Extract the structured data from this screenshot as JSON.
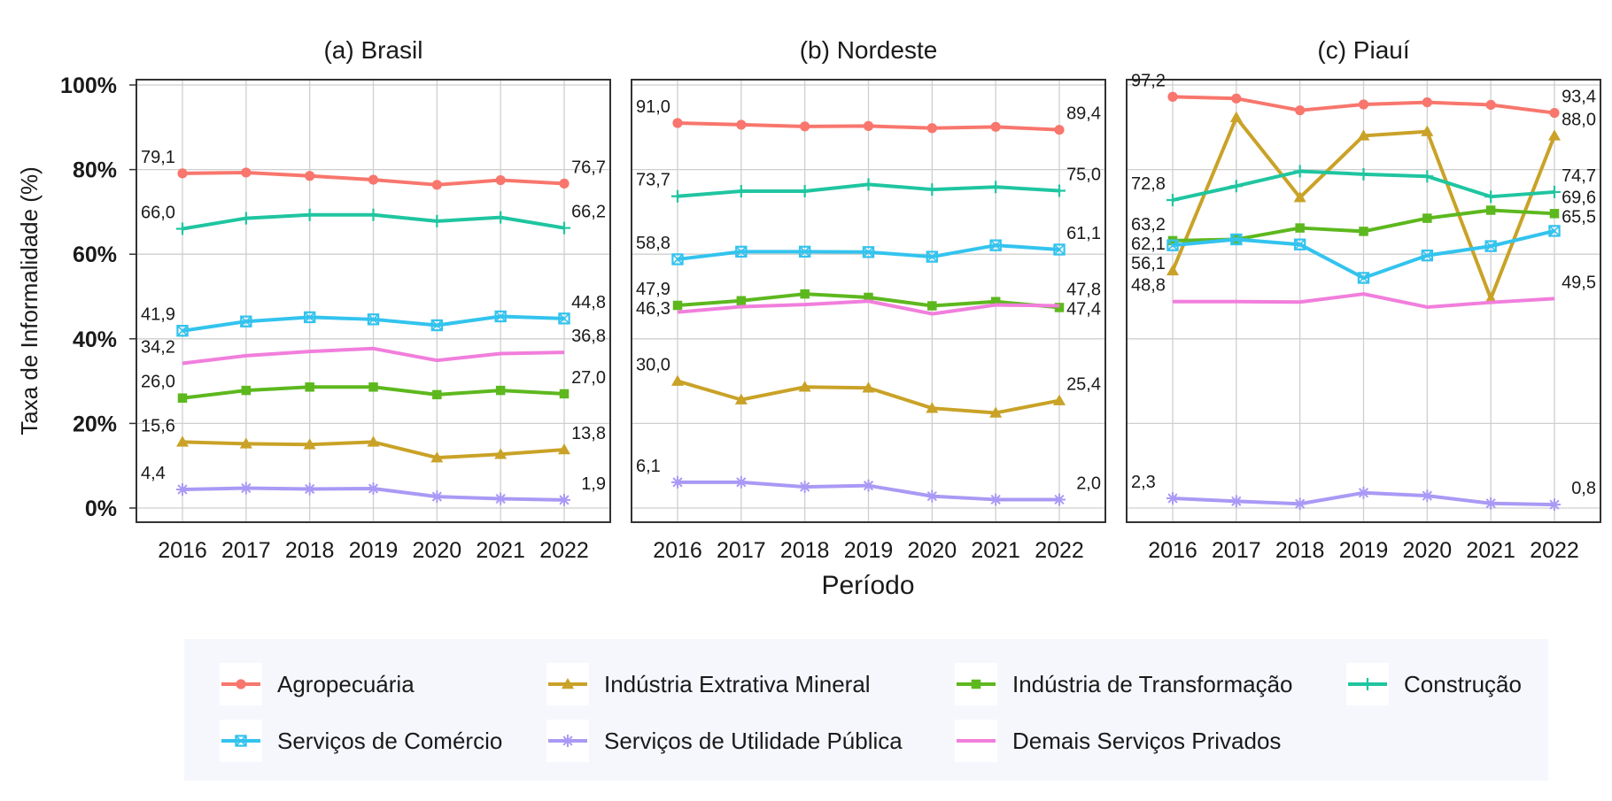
{
  "chart_data": {
    "type": "line",
    "ylabel": "Taxa de Informalidade (%)",
    "xlabel": "Período",
    "ylim": [
      0,
      100
    ],
    "yticks": [
      0,
      20,
      40,
      60,
      80,
      100
    ],
    "ytick_labels": [
      "0%",
      "20%",
      "40%",
      "60%",
      "80%",
      "100%"
    ],
    "x": [
      "2016",
      "2017",
      "2018",
      "2019",
      "2020",
      "2021",
      "2022"
    ],
    "grid": true,
    "legend_position": "bottom",
    "series_styles": [
      {
        "name": "Agropecuária",
        "color": "#F8766D",
        "marker": "circle"
      },
      {
        "name": "Indústria Extrativa Mineral",
        "color": "#C9A227",
        "marker": "triangle"
      },
      {
        "name": "Indústria de Transformação",
        "color": "#5DB81E",
        "marker": "square"
      },
      {
        "name": "Construção",
        "color": "#1FC5A0",
        "marker": "plus"
      },
      {
        "name": "Serviços de Comércio",
        "color": "#33C3EE",
        "marker": "boxx"
      },
      {
        "name": "Serviços de Utilidade Pública",
        "color": "#AA99F5",
        "marker": "asterisk"
      },
      {
        "name": "Demais Serviços Privados",
        "color": "#F17EDC",
        "marker": "none"
      }
    ],
    "panels": [
      {
        "title": "(a) Brasil",
        "series": [
          {
            "name": "Agropecuária",
            "values": [
              79.1,
              79.3,
              78.5,
              77.6,
              76.4,
              77.5,
              76.7
            ]
          },
          {
            "name": "Indústria Extrativa Mineral",
            "values": [
              15.6,
              15.2,
              15.0,
              15.6,
              11.9,
              12.7,
              13.8
            ]
          },
          {
            "name": "Indústria de Transformação",
            "values": [
              26.0,
              27.8,
              28.6,
              28.6,
              26.8,
              27.8,
              27.0
            ]
          },
          {
            "name": "Construção",
            "values": [
              66.0,
              68.5,
              69.3,
              69.3,
              67.8,
              68.7,
              66.2
            ]
          },
          {
            "name": "Serviços de Comércio",
            "values": [
              41.9,
              44.1,
              45.1,
              44.6,
              43.2,
              45.3,
              44.8
            ]
          },
          {
            "name": "Serviços de Utilidade Pública",
            "values": [
              4.4,
              4.7,
              4.5,
              4.6,
              2.7,
              2.2,
              1.9
            ]
          },
          {
            "name": "Demais Serviços Privados",
            "values": [
              34.2,
              36.0,
              37.0,
              37.7,
              34.9,
              36.5,
              36.8
            ]
          }
        ],
        "annotations": [
          {
            "text": "79,1",
            "series": "Agropecuária",
            "at": "start"
          },
          {
            "text": "76,7",
            "series": "Agropecuária",
            "at": "end"
          },
          {
            "text": "66,0",
            "series": "Construção",
            "at": "start"
          },
          {
            "text": "66,2",
            "series": "Construção",
            "at": "end"
          },
          {
            "text": "41,9",
            "series": "Serviços de Comércio",
            "at": "start"
          },
          {
            "text": "44,8",
            "series": "Serviços de Comércio",
            "at": "end"
          },
          {
            "text": "34,2",
            "series": "Demais Serviços Privados",
            "at": "start"
          },
          {
            "text": "36,8",
            "series": "Demais Serviços Privados",
            "at": "end"
          },
          {
            "text": "26,0",
            "series": "Indústria de Transformação",
            "at": "start"
          },
          {
            "text": "27,0",
            "series": "Indústria de Transformação",
            "at": "end"
          },
          {
            "text": "15,6",
            "series": "Indústria Extrativa Mineral",
            "at": "start"
          },
          {
            "text": "13,8",
            "series": "Indústria Extrativa Mineral",
            "at": "end"
          },
          {
            "text": "4,4",
            "series": "Serviços de Utilidade Pública",
            "at": "start"
          },
          {
            "text": "1,9",
            "series": "Serviços de Utilidade Pública",
            "at": "end"
          }
        ]
      },
      {
        "title": "(b) Nordeste",
        "series": [
          {
            "name": "Agropecuária",
            "values": [
              91.0,
              90.6,
              90.2,
              90.3,
              89.8,
              90.1,
              89.4
            ]
          },
          {
            "name": "Indústria Extrativa Mineral",
            "values": [
              30.0,
              25.6,
              28.6,
              28.4,
              23.6,
              22.5,
              25.4
            ]
          },
          {
            "name": "Indústria de Transformação",
            "values": [
              47.9,
              49.0,
              50.6,
              49.8,
              47.8,
              48.8,
              47.4
            ]
          },
          {
            "name": "Construção",
            "values": [
              73.7,
              74.9,
              74.9,
              76.5,
              75.3,
              75.9,
              75.0
            ]
          },
          {
            "name": "Serviços de Comércio",
            "values": [
              58.8,
              60.6,
              60.6,
              60.5,
              59.4,
              62.1,
              61.1
            ]
          },
          {
            "name": "Serviços de Utilidade Pública",
            "values": [
              6.1,
              6.1,
              5.0,
              5.3,
              2.8,
              2.0,
              2.0
            ]
          },
          {
            "name": "Demais Serviços Privados",
            "values": [
              46.3,
              47.6,
              48.1,
              48.9,
              45.9,
              48.0,
              47.8
            ]
          }
        ],
        "annotations": [
          {
            "text": "91,0",
            "series": "Agropecuária",
            "at": "start"
          },
          {
            "text": "89,4",
            "series": "Agropecuária",
            "at": "end"
          },
          {
            "text": "73,7",
            "series": "Construção",
            "at": "start"
          },
          {
            "text": "75,0",
            "series": "Construção",
            "at": "end"
          },
          {
            "text": "58,8",
            "series": "Serviços de Comércio",
            "at": "start"
          },
          {
            "text": "61,1",
            "series": "Serviços de Comércio",
            "at": "end"
          },
          {
            "text": "47,9",
            "series": "Indústria de Transformação",
            "at": "start"
          },
          {
            "text": "47,8",
            "series": "Demais Serviços Privados",
            "at": "end"
          },
          {
            "text": "46,3",
            "series": "Demais Serviços Privados",
            "at": "start"
          },
          {
            "text": "47,4",
            "series": "Indústria de Transformação",
            "at": "end"
          },
          {
            "text": "30,0",
            "series": "Indústria Extrativa Mineral",
            "at": "start"
          },
          {
            "text": "25,4",
            "series": "Indústria Extrativa Mineral",
            "at": "end"
          },
          {
            "text": "6,1",
            "series": "Serviços de Utilidade Pública",
            "at": "start"
          },
          {
            "text": "2,0",
            "series": "Serviços de Utilidade Pública",
            "at": "end"
          }
        ]
      },
      {
        "title": "(c) Piauí",
        "series": [
          {
            "name": "Agropecuária",
            "values": [
              97.2,
              96.8,
              94.0,
              95.4,
              95.9,
              95.3,
              93.4
            ]
          },
          {
            "name": "Indústria Extrativa Mineral",
            "values": [
              56.1,
              92.3,
              73.4,
              88.0,
              89.0,
              49.5,
              88.0
            ]
          },
          {
            "name": "Indústria de Transformação",
            "values": [
              63.2,
              63.5,
              66.2,
              65.4,
              68.5,
              70.4,
              69.6
            ]
          },
          {
            "name": "Construção",
            "values": [
              72.8,
              76.1,
              79.6,
              78.9,
              78.4,
              73.6,
              74.7
            ]
          },
          {
            "name": "Serviços de Comércio",
            "values": [
              62.1,
              63.5,
              62.3,
              54.4,
              59.7,
              61.9,
              65.5
            ]
          },
          {
            "name": "Serviços de Utilidade Pública",
            "values": [
              2.3,
              1.6,
              1.0,
              3.6,
              2.9,
              1.1,
              0.8
            ]
          },
          {
            "name": "Demais Serviços Privados",
            "values": [
              48.8,
              48.8,
              48.7,
              50.6,
              47.5,
              48.6,
              49.5
            ]
          }
        ],
        "annotations": [
          {
            "text": "97,2",
            "series": "Agropecuária",
            "at": "start"
          },
          {
            "text": "93,4",
            "series": "Agropecuária",
            "at": "end"
          },
          {
            "text": "72,8",
            "series": "Construção",
            "at": "start"
          },
          {
            "text": "88,0",
            "series": "Indústria Extrativa Mineral",
            "at": "end"
          },
          {
            "text": "63,2",
            "series": "Indústria de Transformação",
            "at": "start"
          },
          {
            "text": "74,7",
            "series": "Construção",
            "at": "end"
          },
          {
            "text": "62,1",
            "series": "Serviços de Comércio",
            "at": "start"
          },
          {
            "text": "69,6",
            "series": "Indústria de Transformação",
            "at": "end"
          },
          {
            "text": "56,1",
            "series": "Indústria Extrativa Mineral",
            "at": "start"
          },
          {
            "text": "65,5",
            "series": "Serviços de Comércio",
            "at": "end"
          },
          {
            "text": "48,8",
            "series": "Demais Serviços Privados",
            "at": "start"
          },
          {
            "text": "49,5",
            "series": "Demais Serviços Privados",
            "at": "end"
          },
          {
            "text": "2,3",
            "series": "Serviços de Utilidade Pública",
            "at": "start"
          },
          {
            "text": "0,8",
            "series": "Serviços de Utilidade Pública",
            "at": "end"
          }
        ]
      }
    ]
  }
}
